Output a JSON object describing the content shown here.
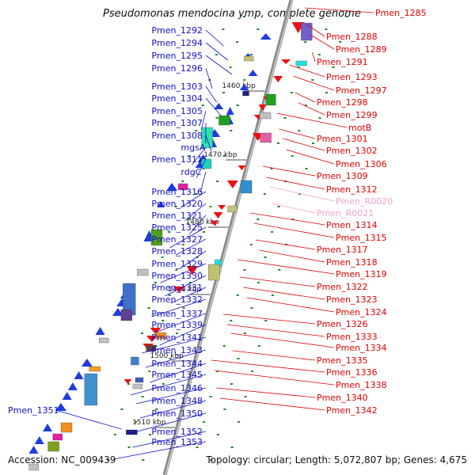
{
  "title": "Pseudomonas mendocina ymp, complete genome",
  "accession": "Accession: NC_009439",
  "summary": "Topology: circular; Length: 5,072,807 bp; Genes: 4,675",
  "colors": {
    "left_label": "#1010c8",
    "right_label": "#dd0000",
    "rna_label": "#f2a0c8",
    "strand_plus": "#1d3ce0",
    "strand_minus": "#ee1111",
    "axis": "#8a8a8a"
  },
  "scale_marks": [
    "1460 kbp",
    "1470 kbp",
    "1480 kbp",
    "1490 kbp",
    "1500 kbp",
    "1510 kbp"
  ],
  "left_labels": [
    "Pmen_1292",
    "Pmen_1294",
    "Pmen_1295",
    "Pmen_1296",
    "Pmen_1303",
    "Pmen_1304",
    "Pmen_1305",
    "Pmen_1307",
    "Pmen_1308",
    "mgsA",
    "Pmen_1311",
    "rdgC",
    "Pmen_1316",
    "Pmen_1320",
    "Pmen_1321",
    "Pmen_1325",
    "Pmen_1327",
    "Pmen_1328",
    "Pmen_1329",
    "Pmen_1330",
    "Pmen_1331",
    "Pmen_1332",
    "Pmen_1337",
    "Pmen_1339",
    "Pmen_1341",
    "Pmen_1343",
    "Pmen_1344",
    "Pmen_1345",
    "Pmen_1346",
    "Pmen_1348",
    "Pmen_1351",
    "Pmen_1350",
    "Pmen_1352",
    "Pmen_1353"
  ],
  "right_labels": [
    "Pmen_1285",
    "Pmen_1288",
    "Pmen_1289",
    "Pmen_1291",
    "Pmen_1293",
    "Pmen_1297",
    "Pmen_1298",
    "Pmen_1299",
    "motB",
    "Pmen_1301",
    "Pmen_1302",
    "Pmen_1306",
    "Pmen_1309",
    "Pmen_1312",
    "Pmen_R0020",
    "Pmen_R0021",
    "Pmen_1314",
    "Pmen_1315",
    "Pmen_1317",
    "Pmen_1318",
    "Pmen_1319",
    "Pmen_1322",
    "Pmen_1323",
    "Pmen_1324",
    "Pmen_1326",
    "Pmen_1333",
    "Pmen_1334",
    "Pmen_1335",
    "Pmen_1336",
    "Pmen_1338",
    "Pmen_1340",
    "Pmen_1342"
  ],
  "rna_labels": [
    "Pmen_R0020",
    "Pmen_R0021"
  ]
}
